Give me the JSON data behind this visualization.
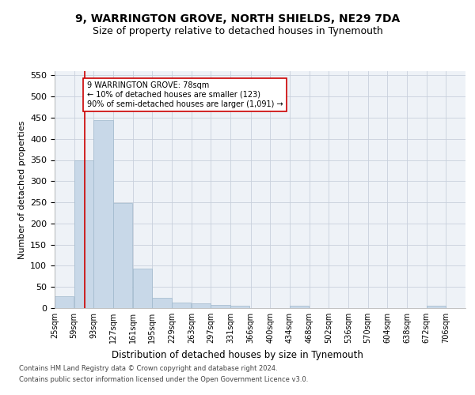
{
  "title": "9, WARRINGTON GROVE, NORTH SHIELDS, NE29 7DA",
  "subtitle": "Size of property relative to detached houses in Tynemouth",
  "xlabel": "Distribution of detached houses by size in Tynemouth",
  "ylabel": "Number of detached properties",
  "bin_labels": [
    "25sqm",
    "59sqm",
    "93sqm",
    "127sqm",
    "161sqm",
    "195sqm",
    "229sqm",
    "263sqm",
    "297sqm",
    "331sqm",
    "366sqm",
    "400sqm",
    "434sqm",
    "468sqm",
    "502sqm",
    "536sqm",
    "570sqm",
    "604sqm",
    "638sqm",
    "672sqm",
    "706sqm"
  ],
  "bar_heights": [
    28,
    350,
    445,
    248,
    93,
    25,
    14,
    11,
    7,
    6,
    0,
    0,
    5,
    0,
    0,
    0,
    0,
    0,
    0,
    5,
    0
  ],
  "bin_edges": [
    25,
    59,
    93,
    127,
    161,
    195,
    229,
    263,
    297,
    331,
    366,
    400,
    434,
    468,
    502,
    536,
    570,
    604,
    638,
    672,
    706,
    740
  ],
  "bar_color": "#c8d8e8",
  "bar_edge_color": "#a0b8cc",
  "property_size": 78,
  "red_line_color": "#cc0000",
  "annotation_line1": "9 WARRINGTON GROVE: 78sqm",
  "annotation_line2": "← 10% of detached houses are smaller (123)",
  "annotation_line3": "90% of semi-detached houses are larger (1,091) →",
  "annotation_box_color": "#ffffff",
  "annotation_box_edge": "#cc0000",
  "ylim": [
    0,
    560
  ],
  "yticks": [
    0,
    50,
    100,
    150,
    200,
    250,
    300,
    350,
    400,
    450,
    500,
    550
  ],
  "footer_line1": "Contains HM Land Registry data © Crown copyright and database right 2024.",
  "footer_line2": "Contains public sector information licensed under the Open Government Licence v3.0.",
  "background_color": "#eef2f7",
  "grid_color": "#c8d0dc",
  "title_fontsize": 10,
  "subtitle_fontsize": 9,
  "ylabel_fontsize": 8,
  "xlabel_fontsize": 8.5,
  "tick_fontsize": 7,
  "annotation_fontsize": 7,
  "footer_fontsize": 6
}
